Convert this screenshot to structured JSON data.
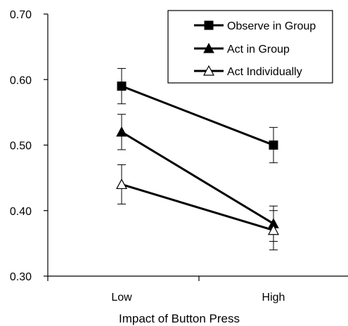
{
  "chart_data": {
    "type": "line",
    "xlabel": "Impact of Button Press",
    "ylabel": "",
    "categories": [
      "Low",
      "High"
    ],
    "ylim": [
      0.3,
      0.7
    ],
    "yticks": [
      "0.30",
      "0.40",
      "0.50",
      "0.60",
      "0.70"
    ],
    "grid": false,
    "legend_position": "top-right",
    "series": [
      {
        "name": "Observe in Group",
        "marker": "filled-square",
        "values": [
          0.59,
          0.5
        ],
        "error": [
          0.027,
          0.027
        ]
      },
      {
        "name": "Act in Group",
        "marker": "filled-triangle",
        "values": [
          0.52,
          0.38
        ],
        "error": [
          0.027,
          0.027
        ]
      },
      {
        "name": "Act Individually",
        "marker": "open-triangle",
        "values": [
          0.44,
          0.37
        ],
        "error": [
          0.03,
          0.03
        ]
      }
    ]
  }
}
